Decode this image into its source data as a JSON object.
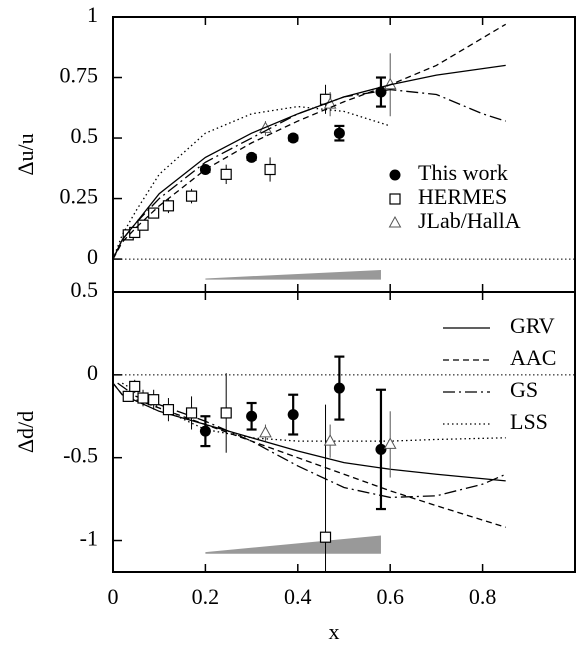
{
  "chart_data": [
    {
      "type": "scatter",
      "ylabel": "Δu/u",
      "xlim": [
        0,
        1
      ],
      "ylim": [
        -0.136,
        1
      ],
      "xticks": [
        0,
        0.2,
        0.4,
        0.6,
        0.8
      ],
      "yticks": [
        0,
        0.25,
        0.5,
        0.75,
        1
      ],
      "legend": "right",
      "zero_line": true,
      "band": {
        "x": [
          0.2,
          0.58
        ],
        "base": -0.085,
        "values": [
          0.005,
          0.04
        ],
        "color": "#999999"
      },
      "series": [
        {
          "name": "This work",
          "marker": "circle",
          "color": "#000000",
          "x": [
            0.2,
            0.3,
            0.39,
            0.49,
            0.58
          ],
          "values": [
            0.37,
            0.42,
            0.5,
            0.52,
            0.69
          ],
          "errors": [
            0.01,
            0.01,
            0.01,
            0.03,
            0.06
          ]
        },
        {
          "name": "HERMES",
          "marker": "square",
          "color": "#000000",
          "x": [
            0.033,
            0.047,
            0.065,
            0.088,
            0.12,
            0.17,
            0.245,
            0.34,
            0.46
          ],
          "values": [
            0.1,
            0.11,
            0.14,
            0.19,
            0.22,
            0.26,
            0.35,
            0.37,
            0.66
          ],
          "errors": [
            0.02,
            0.02,
            0.02,
            0.02,
            0.03,
            0.03,
            0.04,
            0.05,
            0.06
          ]
        },
        {
          "name": "JLab/HallA",
          "marker": "triangle",
          "color": "#555555",
          "x": [
            0.33,
            0.47,
            0.6
          ],
          "values": [
            0.54,
            0.64,
            0.72
          ],
          "errors": [
            0.03,
            0.05,
            0.13
          ]
        },
        {
          "style": "solid",
          "color": "#000000",
          "x": [
            0,
            0.02,
            0.05,
            0.1,
            0.2,
            0.3,
            0.4,
            0.5,
            0.6,
            0.7,
            0.85
          ],
          "values": [
            0,
            0.08,
            0.15,
            0.27,
            0.42,
            0.52,
            0.6,
            0.67,
            0.72,
            0.76,
            0.8
          ]
        },
        {
          "style": "dashed",
          "color": "#000000",
          "x": [
            0,
            0.02,
            0.05,
            0.1,
            0.2,
            0.3,
            0.4,
            0.5,
            0.6,
            0.7,
            0.85
          ],
          "values": [
            0,
            0.07,
            0.13,
            0.22,
            0.37,
            0.48,
            0.57,
            0.65,
            0.72,
            0.8,
            0.97
          ]
        },
        {
          "style": "dashdot",
          "color": "#000000",
          "x": [
            0,
            0.02,
            0.05,
            0.1,
            0.2,
            0.3,
            0.4,
            0.5,
            0.6,
            0.7,
            0.8,
            0.85
          ],
          "values": [
            0,
            0.08,
            0.15,
            0.25,
            0.4,
            0.5,
            0.6,
            0.67,
            0.7,
            0.68,
            0.6,
            0.57
          ]
        },
        {
          "style": "dotted",
          "color": "#000000",
          "x": [
            0,
            0.02,
            0.05,
            0.1,
            0.2,
            0.3,
            0.4,
            0.5,
            0.6
          ],
          "values": [
            0,
            0.1,
            0.2,
            0.35,
            0.52,
            0.6,
            0.63,
            0.61,
            0.55
          ]
        }
      ]
    },
    {
      "type": "scatter",
      "ylabel": "Δd/d",
      "xlabel": "x",
      "xlim": [
        0,
        1
      ],
      "ylim": [
        -1.19,
        0.5
      ],
      "xticks": [
        0,
        0.2,
        0.4,
        0.6,
        0.8
      ],
      "yticks": [
        0.5,
        0,
        -0.5,
        -1
      ],
      "legend": "right",
      "zero_line": true,
      "band": {
        "x": [
          0.2,
          0.58
        ],
        "base": -1.08,
        "values": [
          0.01,
          0.11
        ],
        "color": "#999999"
      },
      "series": [
        {
          "name": "GRV",
          "style": "solid",
          "color": "#000000",
          "x": [
            0,
            0.02,
            0.1,
            0.2,
            0.3,
            0.4,
            0.5,
            0.6,
            0.7,
            0.85
          ],
          "values": [
            -0.05,
            -0.12,
            -0.22,
            -0.3,
            -0.38,
            -0.46,
            -0.53,
            -0.57,
            -0.6,
            -0.64
          ]
        },
        {
          "name": "AAC",
          "style": "dashed",
          "color": "#000000",
          "x": [
            0,
            0.02,
            0.1,
            0.2,
            0.3,
            0.4,
            0.5,
            0.6,
            0.7,
            0.85
          ],
          "values": [
            -0.05,
            -0.12,
            -0.2,
            -0.3,
            -0.4,
            -0.5,
            -0.6,
            -0.7,
            -0.79,
            -0.92
          ]
        },
        {
          "name": "GS",
          "style": "dashdot",
          "color": "#000000",
          "x": [
            0.01,
            0.05,
            0.1,
            0.2,
            0.3,
            0.4,
            0.5,
            0.6,
            0.7,
            0.8,
            0.85
          ],
          "values": [
            -0.05,
            -0.13,
            -0.18,
            -0.28,
            -0.4,
            -0.55,
            -0.68,
            -0.74,
            -0.73,
            -0.66,
            -0.6
          ]
        },
        {
          "name": "LSS",
          "style": "dotted",
          "color": "#000000",
          "x": [
            0.02,
            0.05,
            0.1,
            0.2,
            0.3,
            0.4,
            0.5,
            0.6,
            0.7,
            0.85
          ],
          "values": [
            -0.05,
            -0.1,
            -0.2,
            -0.33,
            -0.38,
            -0.4,
            -0.4,
            -0.4,
            -0.39,
            -0.38
          ]
        },
        {
          "marker": "circle",
          "color": "#000000",
          "x": [
            0.2,
            0.3,
            0.39,
            0.49,
            0.58
          ],
          "values": [
            -0.34,
            -0.25,
            -0.24,
            -0.08,
            -0.45
          ],
          "errors": [
            0.09,
            0.08,
            0.12,
            0.19,
            0.36
          ]
        },
        {
          "marker": "square",
          "color": "#000000",
          "x": [
            0.033,
            0.047,
            0.065,
            0.088,
            0.12,
            0.17,
            0.245,
            0.46
          ],
          "values": [
            -0.13,
            -0.07,
            -0.14,
            -0.15,
            -0.21,
            -0.23,
            -0.23,
            -0.98
          ],
          "errors": [
            0.03,
            0.04,
            0.05,
            0.06,
            0.07,
            0.1,
            0.24,
            0.8
          ]
        },
        {
          "marker": "triangle",
          "color": "#555555",
          "x": [
            0.33,
            0.47,
            0.6
          ],
          "values": [
            -0.35,
            -0.4,
            -0.42
          ],
          "errors": [
            0.05,
            0.1,
            0.2
          ]
        }
      ]
    }
  ]
}
